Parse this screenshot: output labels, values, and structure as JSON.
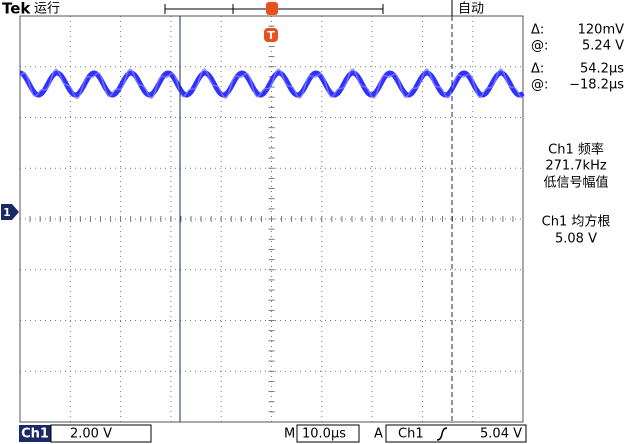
{
  "header": {
    "brand": "Tek",
    "status": "运行",
    "trigger_mode": "自动",
    "trigger_marker": "T"
  },
  "channel_marker": "1",
  "readouts": {
    "delta_label_1": "Δ:",
    "delta_v": "120mV",
    "at_label_1": "@:",
    "at_v": "5.24 V",
    "delta_label_2": "Δ:",
    "delta_t": "54.2µs",
    "at_label_2": "@:",
    "at_t": "−18.2µs"
  },
  "measurements": [
    {
      "title": "Ch1 频率",
      "value": "271.7kHz",
      "note": "低信号幅值"
    },
    {
      "title": "Ch1 均方根",
      "value": "5.08 V"
    }
  ],
  "footer": {
    "channel": "Ch1",
    "volts_div": "2.00 V",
    "time_label": "M",
    "time_div": "10.0µs",
    "trigger_label": "A",
    "trigger_channel": "Ch1",
    "trigger_level": "5.04 V"
  }
}
